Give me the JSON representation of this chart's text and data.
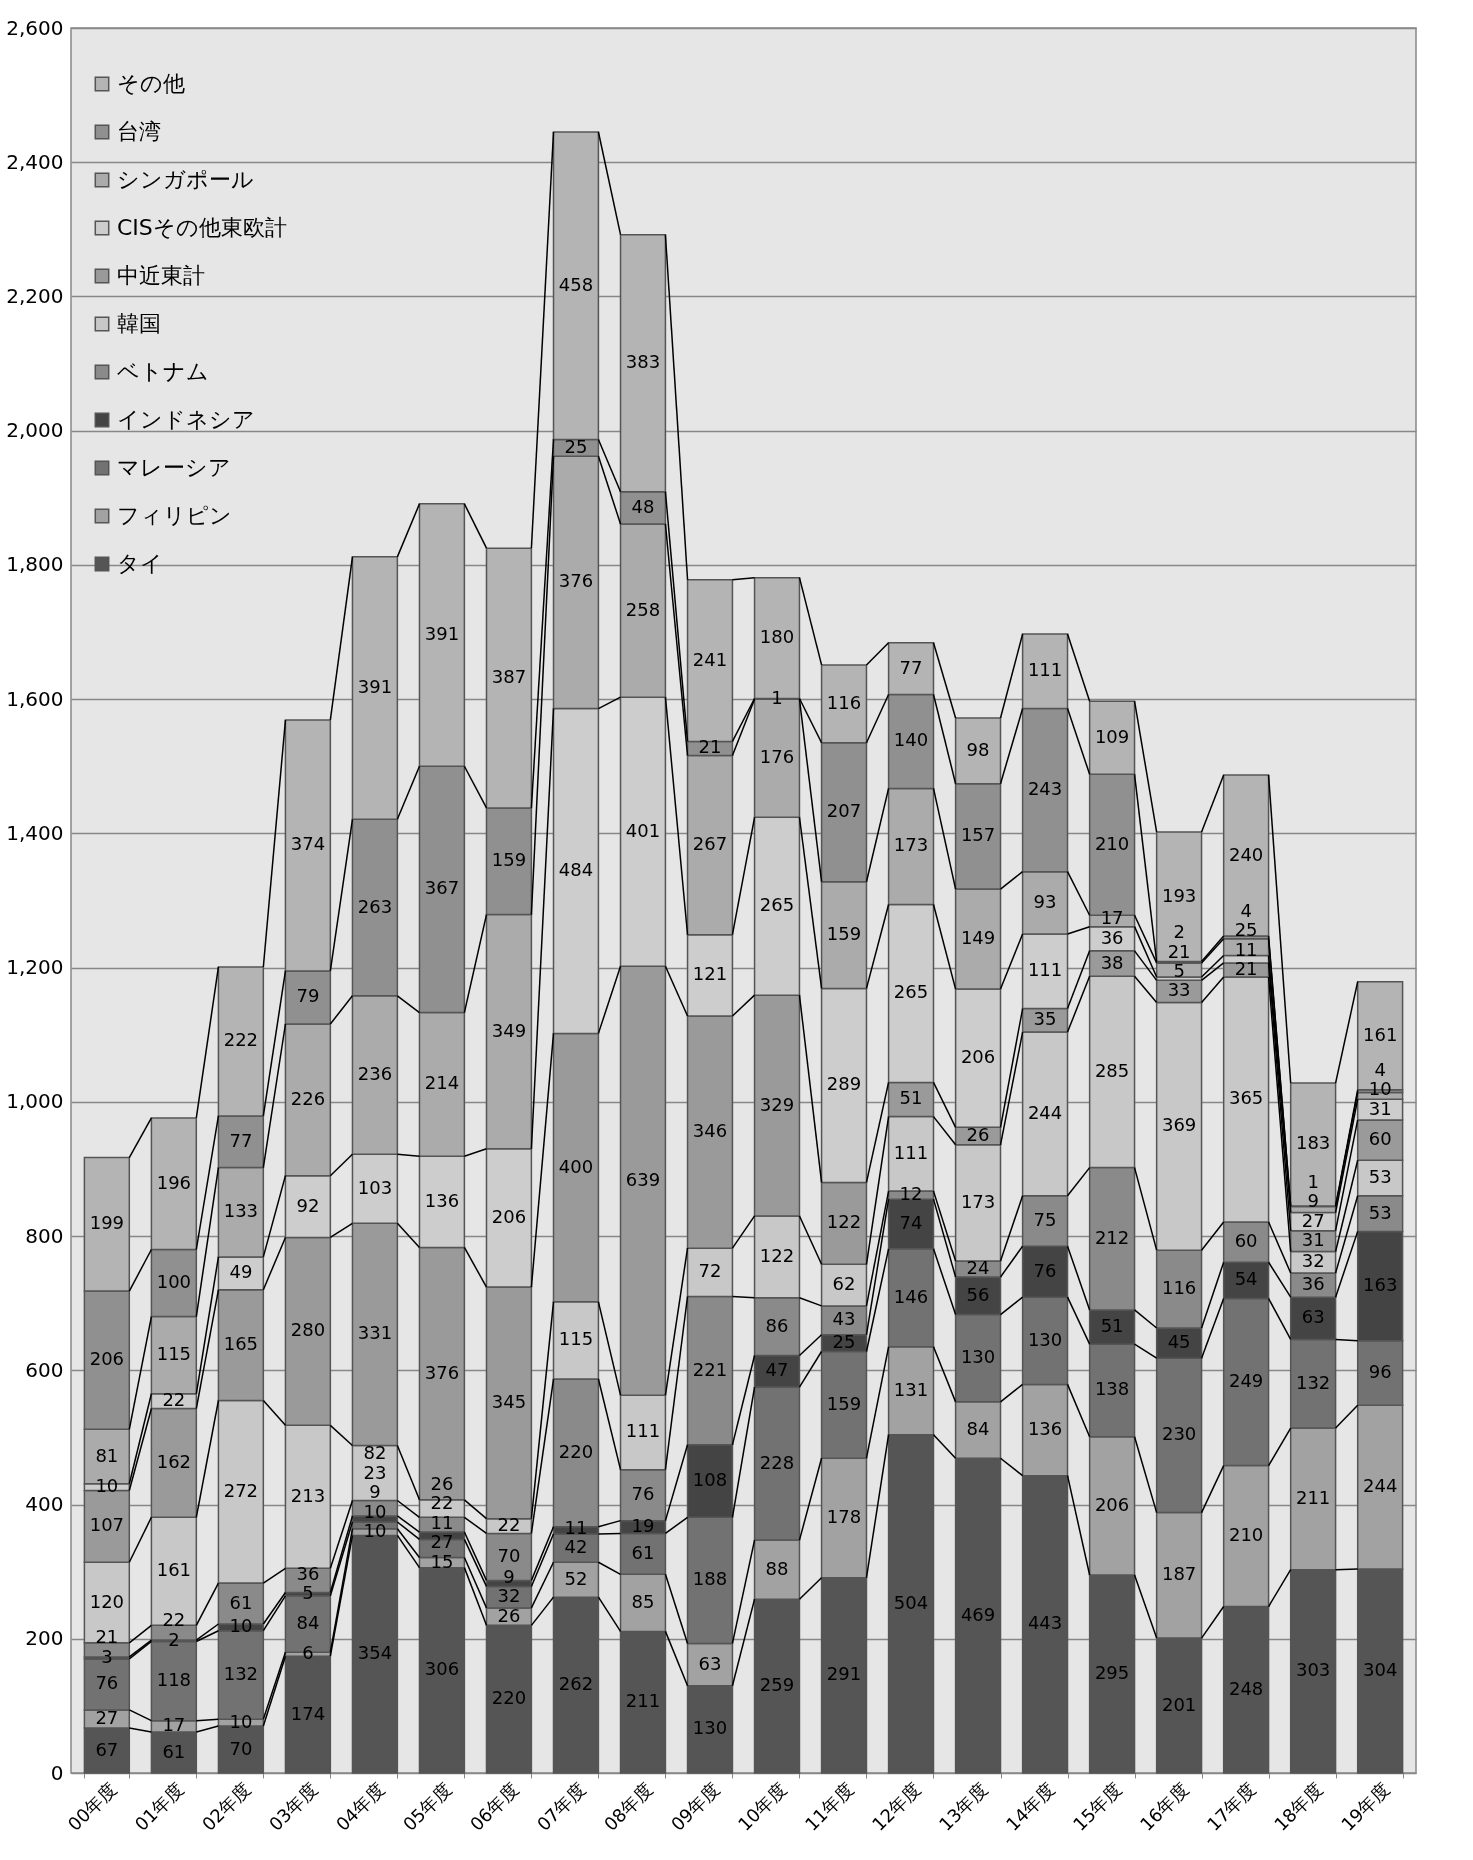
{
  "chart_data": {
    "type": "bar",
    "stacked": true,
    "data_labels": true,
    "grid": "y",
    "legend": "top left",
    "categories": [
      "00年度",
      "01年度",
      "02年度",
      "03年度",
      "04年度",
      "05年度",
      "06年度",
      "07年度",
      "08年度",
      "09年度",
      "10年度",
      "11年度",
      "12年度",
      "13年度",
      "14年度",
      "15年度",
      "16年度",
      "17年度",
      "18年度",
      "19年度"
    ],
    "ylim": [
      0,
      2600
    ],
    "yticks": [
      0,
      200,
      400,
      600,
      800,
      {
        "value": 1000,
        "label": "1,000"
      },
      {
        "value": 1200,
        "label": "1,200"
      },
      {
        "value": 1400,
        "label": "1,400"
      },
      {
        "value": 1600,
        "label": "1,600"
      },
      {
        "value": 1800,
        "label": "1,800"
      },
      {
        "value": 2000,
        "label": "2,000"
      },
      {
        "value": 2200,
        "label": "2,200"
      },
      {
        "value": 2400,
        "label": "2,400"
      },
      {
        "value": 2600,
        "label": "2,600"
      }
    ],
    "series": [
      {
        "name": "タイ",
        "color": "#555555",
        "values": [
          67,
          61,
          70,
          174,
          354,
          306,
          220,
          262,
          211,
          130,
          259,
          291,
          504,
          469,
          443,
          295,
          201,
          248,
          303,
          304
        ]
      },
      {
        "name": "フィリピン",
        "color": "#a2a2a2",
        "values": [
          27,
          17,
          10,
          6,
          10,
          15,
          26,
          52,
          85,
          63,
          88,
          178,
          131,
          84,
          136,
          206,
          187,
          210,
          211,
          244
        ]
      },
      {
        "name": "マレーシア",
        "color": "#727272",
        "values": [
          76,
          118,
          132,
          84,
          10,
          27,
          32,
          42,
          61,
          188,
          228,
          159,
          146,
          130,
          130,
          138,
          230,
          249,
          132,
          96
        ]
      },
      {
        "name": "インドネシア",
        "color": "#444444",
        "values": [
          3,
          2,
          10,
          5,
          9,
          11,
          9,
          11,
          19,
          108,
          47,
          25,
          74,
          56,
          76,
          51,
          45,
          54,
          63,
          163
        ]
      },
      {
        "name": "ベトナム",
        "color": "#8a8a8a",
        "values": [
          21,
          22,
          61,
          36,
          23,
          22,
          70,
          220,
          76,
          221,
          86,
          43,
          12,
          24,
          75,
          212,
          116,
          60,
          36,
          53
        ]
      },
      {
        "name": "韓国",
        "color": "#c8c8c8",
        "values": [
          120,
          161,
          272,
          213,
          82,
          26,
          22,
          115,
          111,
          72,
          122,
          62,
          111,
          173,
          244,
          285,
          369,
          365,
          32,
          53
        ]
      },
      {
        "name": "中近東計",
        "color": "#9a9a9a",
        "values": [
          107,
          162,
          165,
          280,
          331,
          376,
          345,
          400,
          639,
          346,
          329,
          122,
          51,
          26,
          35,
          38,
          33,
          21,
          31,
          60
        ]
      },
      {
        "name": "CISその他東欧計",
        "color": "#cdcdcd",
        "values": [
          10,
          22,
          49,
          92,
          103,
          136,
          206,
          484,
          401,
          121,
          265,
          289,
          265,
          206,
          111,
          36,
          5,
          11,
          27,
          31
        ]
      },
      {
        "name": "シンガポール",
        "color": "#ababab",
        "values": [
          81,
          115,
          133,
          226,
          236,
          214,
          349,
          376,
          258,
          267,
          176,
          159,
          173,
          149,
          93,
          17,
          21,
          25,
          9,
          10
        ]
      },
      {
        "name": "台湾",
        "color": "#909090",
        "values": [
          206,
          100,
          77,
          79,
          263,
          367,
          159,
          25,
          48,
          21,
          1,
          207,
          140,
          157,
          243,
          210,
          2,
          4,
          1,
          4
        ]
      },
      {
        "name": "その他",
        "color": "#b4b4b4",
        "values": [
          199,
          196,
          222,
          374,
          391,
          391,
          387,
          458,
          383,
          241,
          180,
          116,
          77,
          98,
          111,
          109,
          193,
          240,
          183,
          161
        ]
      }
    ]
  }
}
